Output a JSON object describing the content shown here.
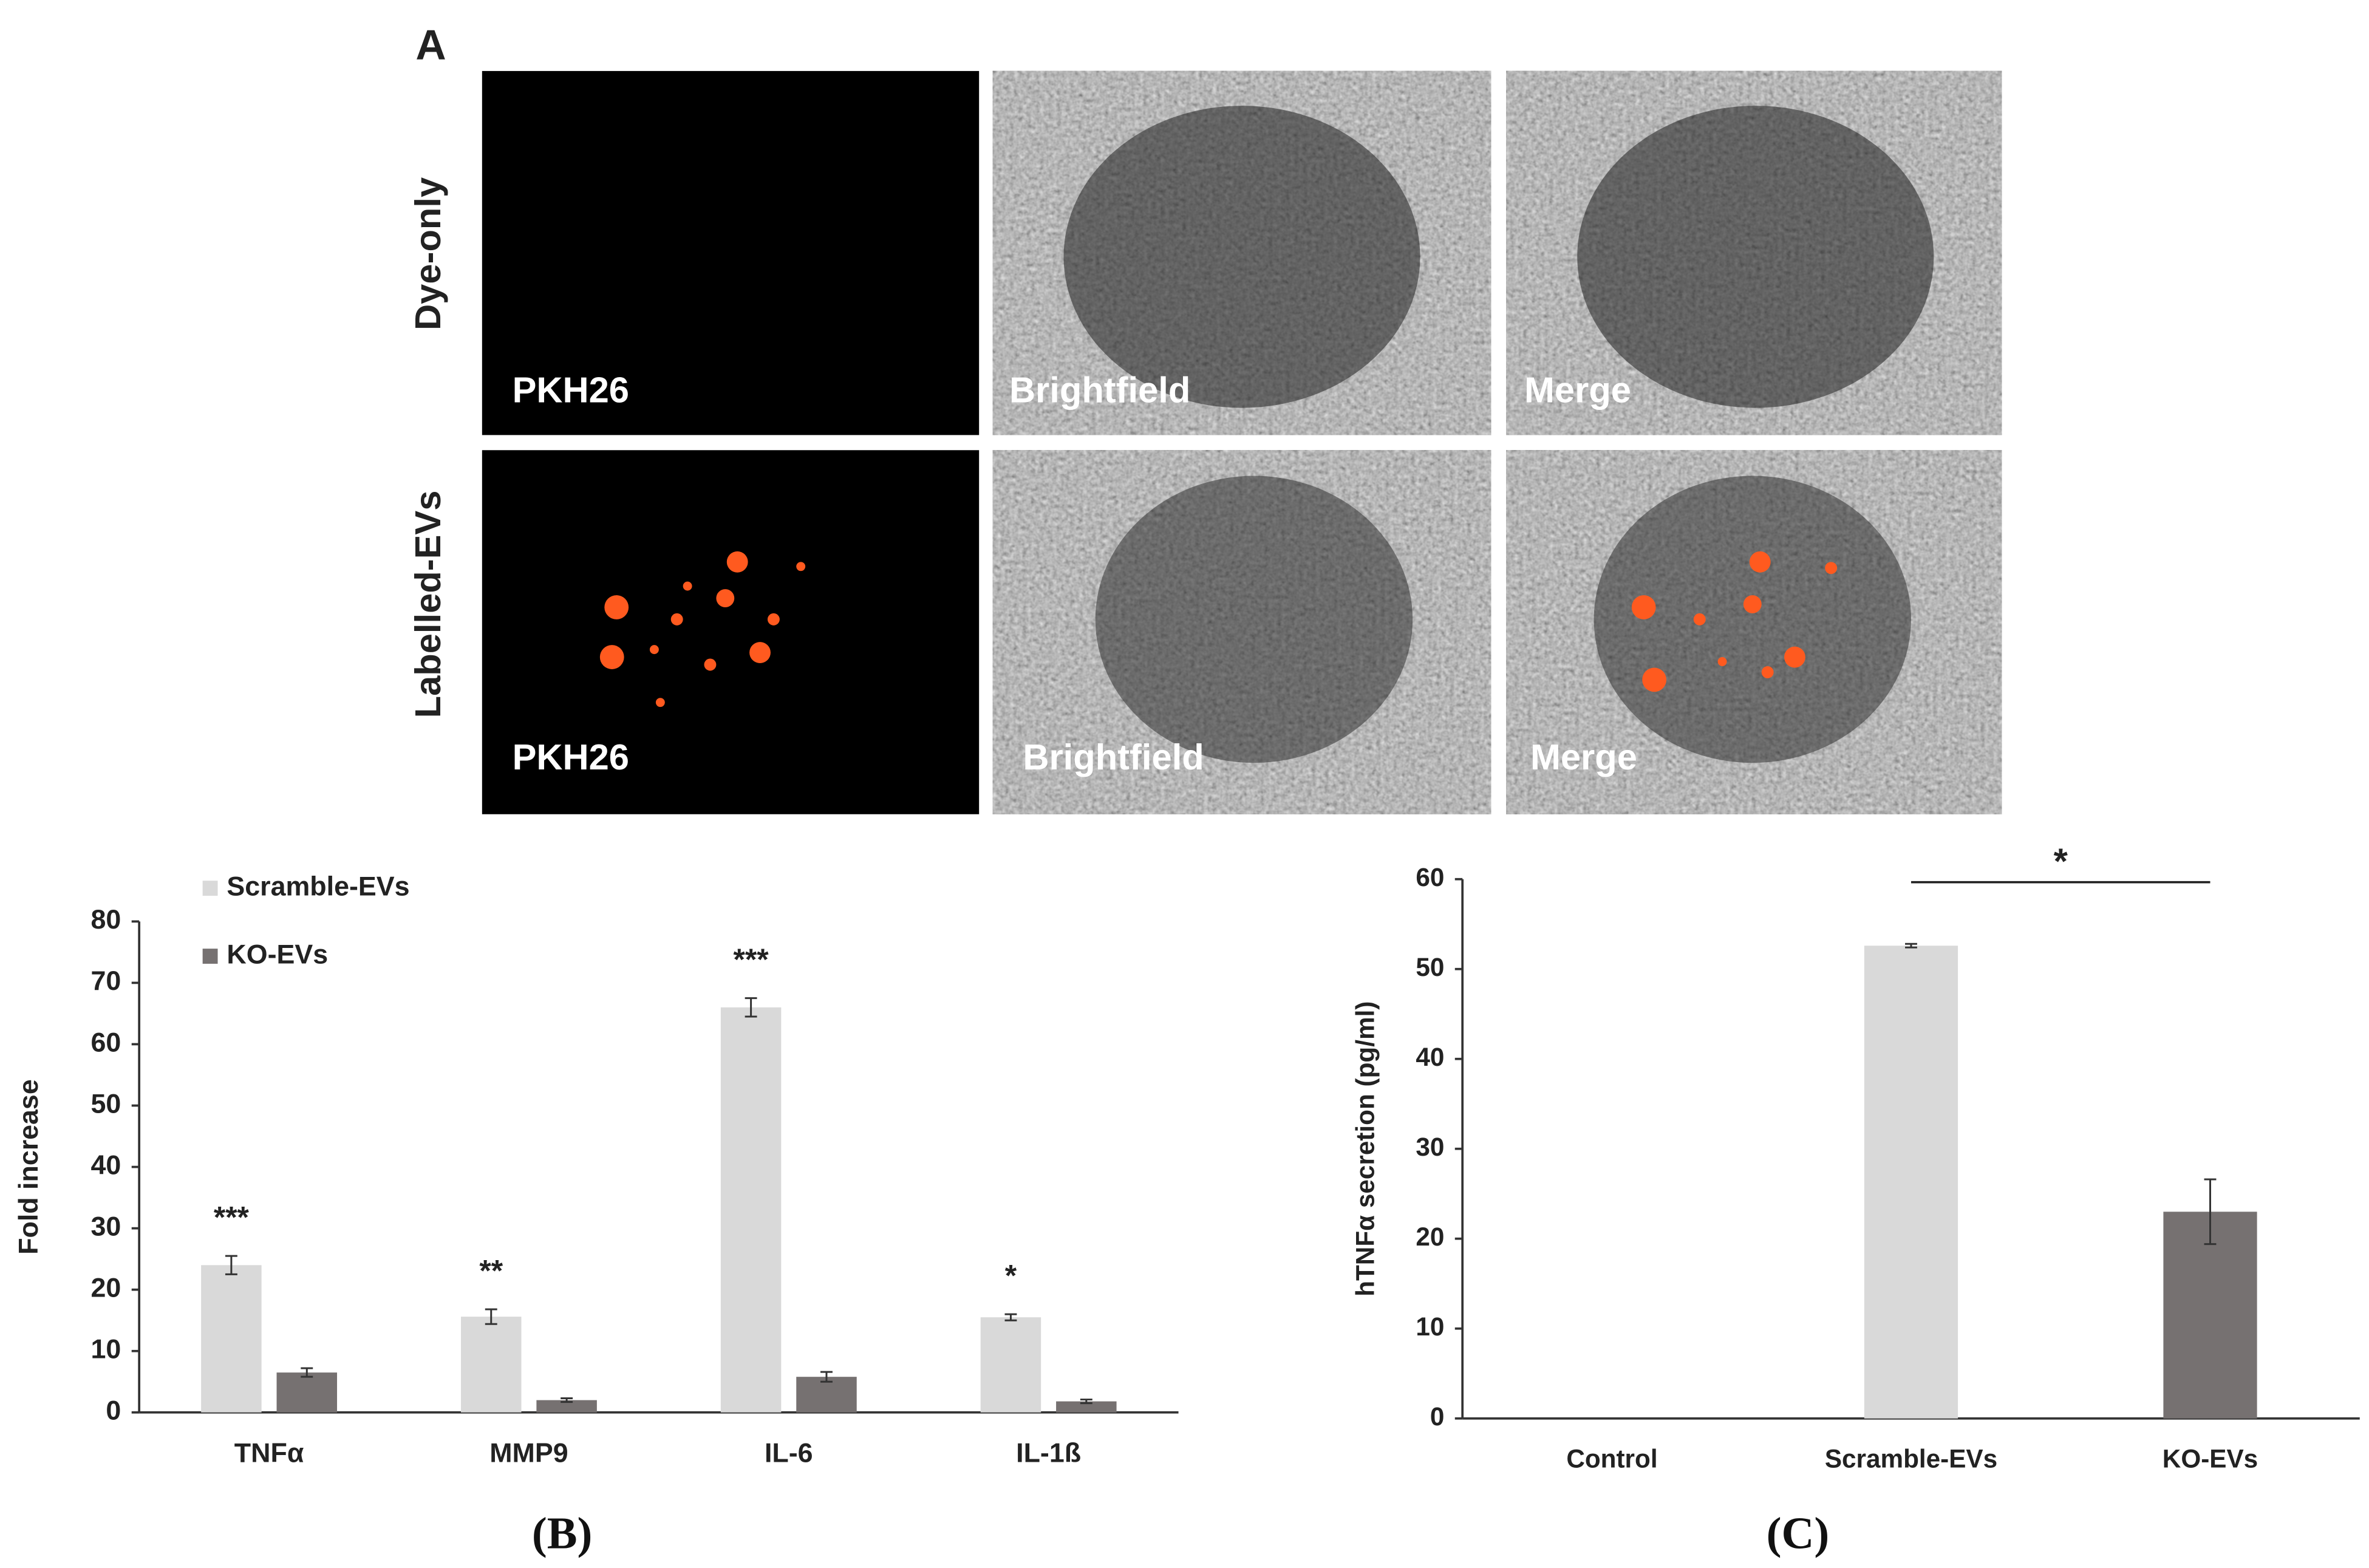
{
  "panel_a": {
    "label": "A",
    "rows": [
      "Dye-only",
      "Labelled-EVs"
    ],
    "image_labels": [
      [
        "PKH26",
        "Brightfield",
        "Merge"
      ],
      [
        "PKH26",
        "Brightfield",
        "Merge"
      ]
    ]
  },
  "chart_data": [
    {
      "type": "bar",
      "caption": "(B)",
      "y_label": "Fold increase",
      "categories": [
        "TNFα",
        "MMP9",
        "IL-6",
        "IL-1ß"
      ],
      "series": [
        {
          "name": "Scramble-EVs",
          "color": "#d9d9d9",
          "values": [
            24,
            15.6,
            66,
            15.5
          ],
          "errors": [
            1.5,
            1.2,
            1.5,
            0.5
          ]
        },
        {
          "name": "KO-EVs",
          "color": "#767171",
          "values": [
            6.5,
            2,
            5.8,
            1.8
          ],
          "errors": [
            0.7,
            0.3,
            0.8,
            0.3
          ]
        }
      ],
      "annotations": [
        "***",
        "**",
        "***",
        "*"
      ],
      "ylim": [
        0,
        80
      ],
      "yticks": [
        0,
        10,
        20,
        30,
        40,
        50,
        60,
        70,
        80
      ],
      "legend": "top-left",
      "grid": false
    },
    {
      "type": "bar",
      "caption": "(C)",
      "y_label": "hTNFα secretion (pg/ml)",
      "categories": [
        "Control",
        "Scramble-EVs",
        "KO-EVs"
      ],
      "values": [
        0,
        52.6,
        23
      ],
      "errors": [
        0,
        0.2,
        3.6
      ],
      "colors": [
        "#d9d9d9",
        "#d9d9d9",
        "#767171"
      ],
      "significance": {
        "label": "*",
        "between": [
          "Scramble-EVs",
          "KO-EVs"
        ]
      },
      "ylim": [
        0,
        60
      ],
      "yticks": [
        0,
        10,
        20,
        30,
        40,
        50,
        60
      ],
      "grid": false
    }
  ]
}
